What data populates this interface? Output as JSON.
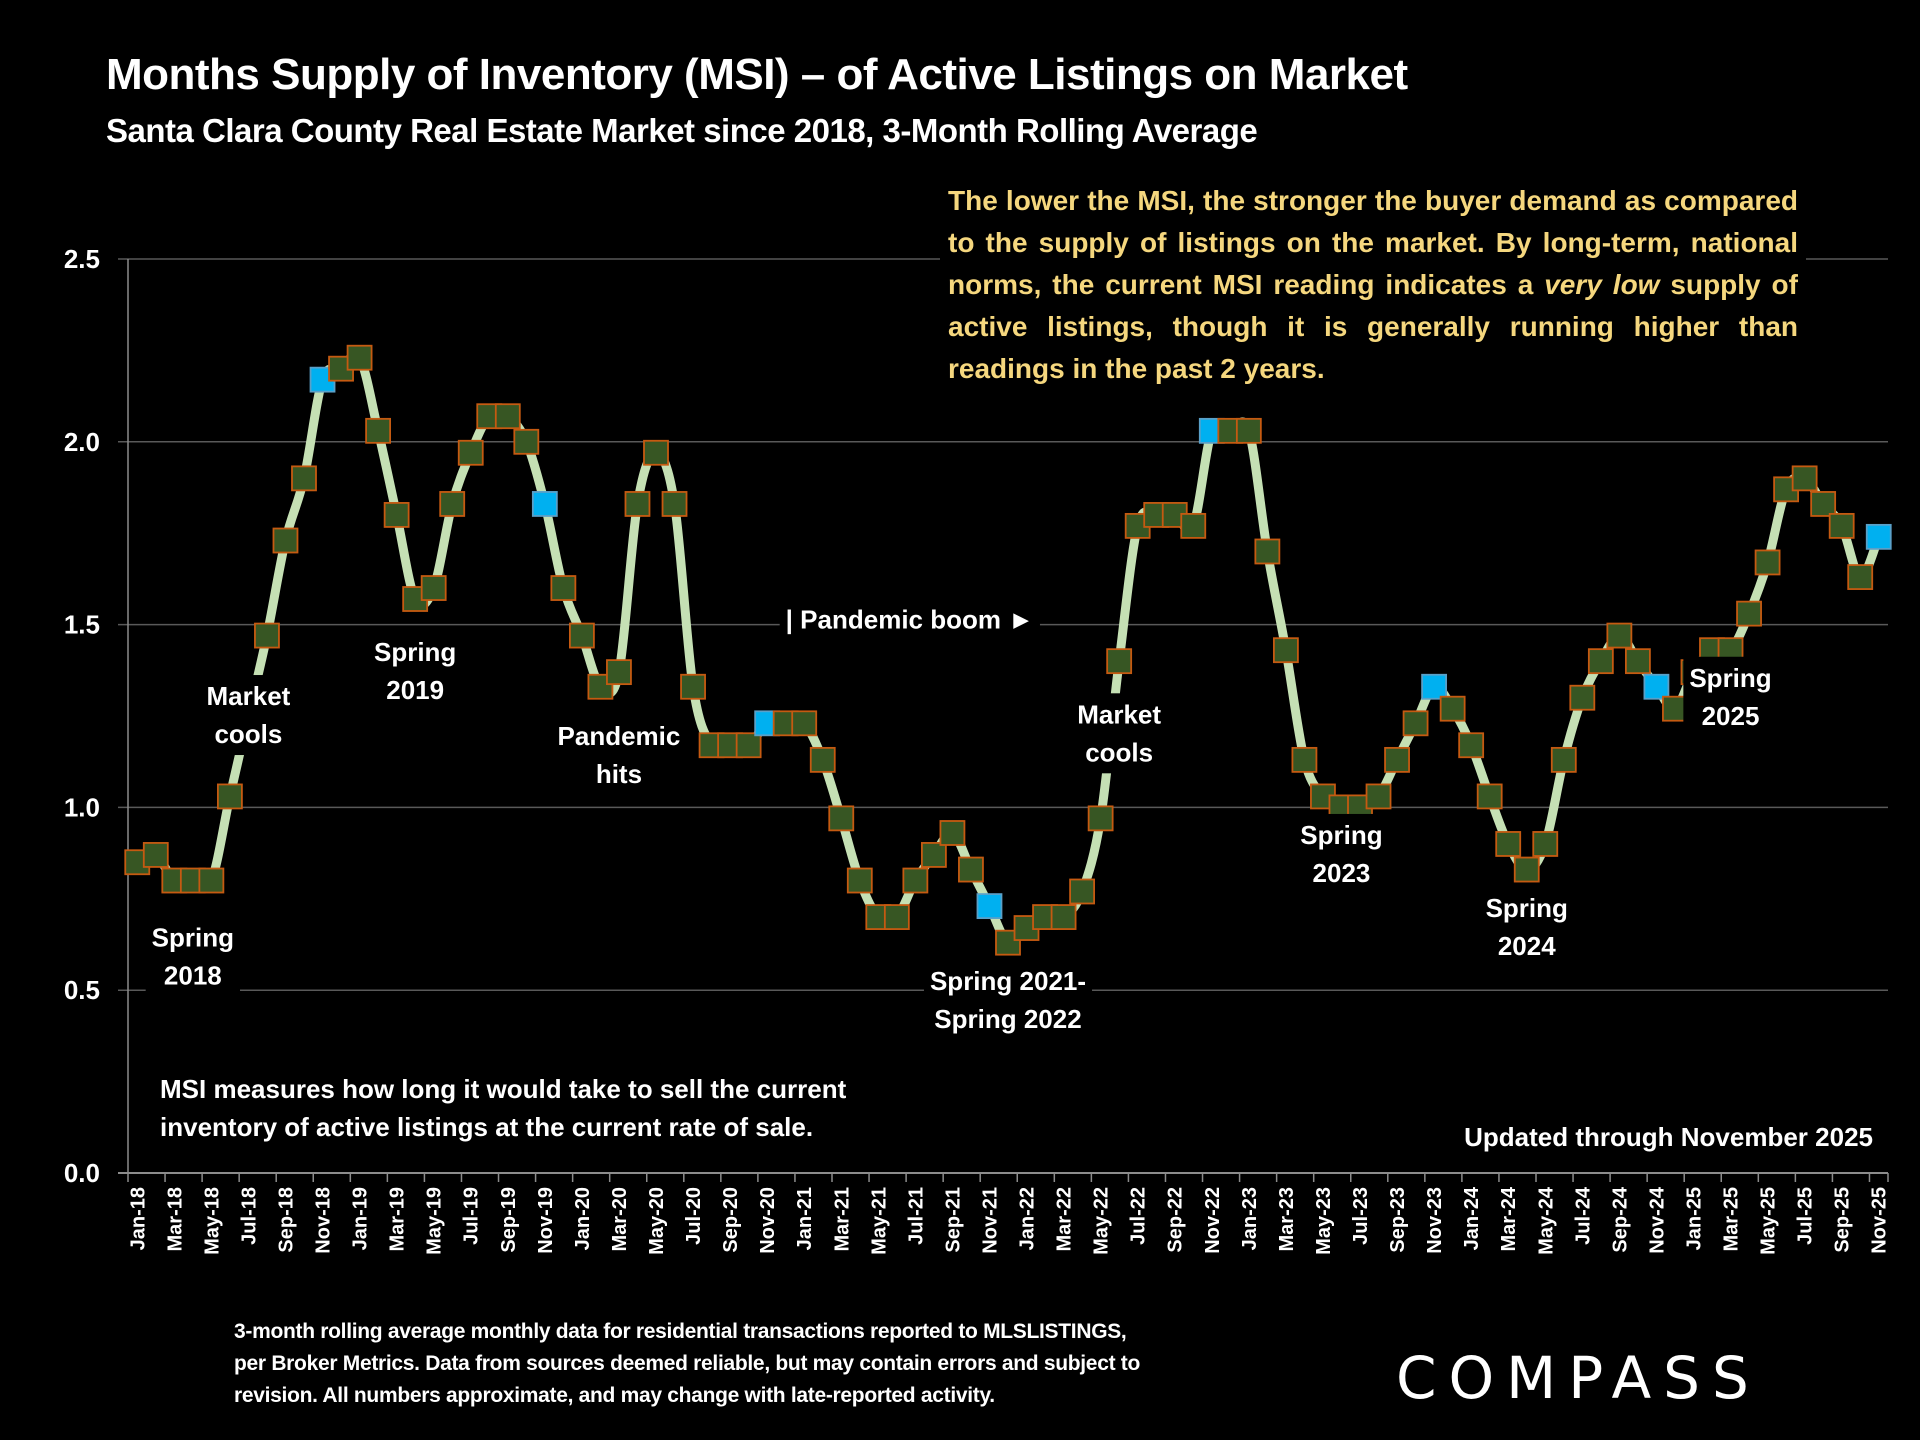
{
  "header": {
    "title": "Months Supply of Inventory (MSI) – of Active Listings on Market",
    "subtitle": "Santa Clara County Real Estate Market since 2018, 3-Month Rolling Average"
  },
  "note": {
    "part1": "The lower the MSI, the stronger the buyer demand as compared to the supply of listings on the market. By long-term, national norms, the current MSI reading indicates a ",
    "emphasis": "very low",
    "part2": " supply of active listings, though it is generally running higher than readings in the past 2 years."
  },
  "definition": {
    "line1": "MSI measures how long it would take to sell the current",
    "line2": "inventory of active listings at the current rate of sale."
  },
  "updated": "Updated through November 2025",
  "footnote": {
    "line1": "3-month rolling average monthly data for residential transactions reported to MLSLISTINGS,",
    "line2": "per Broker Metrics. Data from sources deemed reliable, but may contain errors and subject to",
    "line3": "revision. All numbers approximate, and may change with late-reported activity."
  },
  "logo": "COMPASS",
  "colors": {
    "background": "#000000",
    "line": "#c5e0b4",
    "marker_fill": "#375623",
    "marker_border": "#c55a11",
    "highlight_fill": "#00b0f0",
    "note_text": "#f5d77e",
    "grid": "#595959"
  },
  "chart_data": {
    "type": "line",
    "title": "Months Supply of Inventory (MSI) – of Active Listings on Market",
    "xlabel": "",
    "ylabel": "",
    "ylim": [
      0,
      2.5
    ],
    "yticks": [
      "0.0",
      "0.5",
      "1.0",
      "1.5",
      "2.0",
      "2.5"
    ],
    "grid": true,
    "legend": "none",
    "x": [
      "Jan-18",
      "Feb-18",
      "Mar-18",
      "Apr-18",
      "May-18",
      "Jun-18",
      "Jul-18",
      "Aug-18",
      "Sep-18",
      "Oct-18",
      "Nov-18",
      "Dec-18",
      "Jan-19",
      "Feb-19",
      "Mar-19",
      "Apr-19",
      "May-19",
      "Jun-19",
      "Jul-19",
      "Aug-19",
      "Sep-19",
      "Oct-19",
      "Nov-19",
      "Dec-19",
      "Jan-20",
      "Feb-20",
      "Mar-20",
      "Apr-20",
      "May-20",
      "Jun-20",
      "Jul-20",
      "Aug-20",
      "Sep-20",
      "Oct-20",
      "Nov-20",
      "Dec-20",
      "Jan-21",
      "Feb-21",
      "Mar-21",
      "Apr-21",
      "May-21",
      "Jun-21",
      "Jul-21",
      "Aug-21",
      "Sep-21",
      "Oct-21",
      "Nov-21",
      "Dec-21",
      "Jan-22",
      "Feb-22",
      "Mar-22",
      "Apr-22",
      "May-22",
      "Jun-22",
      "Jul-22",
      "Aug-22",
      "Sep-22",
      "Oct-22",
      "Nov-22",
      "Dec-22",
      "Jan-23",
      "Feb-23",
      "Mar-23",
      "Apr-23",
      "May-23",
      "Jun-23",
      "Jul-23",
      "Aug-23",
      "Sep-23",
      "Oct-23",
      "Nov-23",
      "Dec-23",
      "Jan-24",
      "Feb-24",
      "Mar-24",
      "Apr-24",
      "May-24",
      "Jun-24",
      "Jul-24",
      "Aug-24",
      "Sep-24",
      "Oct-24",
      "Nov-24",
      "Dec-24",
      "Jan-25",
      "Feb-25",
      "Mar-25",
      "Apr-25",
      "May-25",
      "Jun-25",
      "Jul-25",
      "Aug-25",
      "Sep-25",
      "Oct-25",
      "Nov-25"
    ],
    "tick_labels": [
      "Jan-18",
      "Mar-18",
      "May-18",
      "Jul-18",
      "Sep-18",
      "Nov-18",
      "Jan-19",
      "Mar-19",
      "May-19",
      "Jul-19",
      "Sep-19",
      "Nov-19",
      "Jan-20",
      "Mar-20",
      "May-20",
      "Jul-20",
      "Sep-20",
      "Nov-20",
      "Jan-21",
      "Mar-21",
      "May-21",
      "Jul-21",
      "Sep-21",
      "Nov-21",
      "Jan-22",
      "Mar-22",
      "May-22",
      "Jul-22",
      "Sep-22",
      "Nov-22",
      "Jan-23",
      "Mar-23",
      "May-23",
      "Jul-23",
      "Sep-23",
      "Nov-23",
      "Jan-24",
      "Mar-24",
      "May-24",
      "Jul-24",
      "Sep-24",
      "Nov-24",
      "Jan-25",
      "Mar-25",
      "May-25",
      "Jul-25",
      "Sep-25",
      "Nov-25"
    ],
    "series": [
      {
        "name": "MSI",
        "values": [
          0.85,
          0.87,
          0.8,
          0.8,
          0.8,
          1.03,
          1.25,
          1.47,
          1.73,
          1.9,
          2.17,
          2.2,
          2.23,
          2.03,
          1.8,
          1.57,
          1.6,
          1.83,
          1.97,
          2.07,
          2.07,
          2.0,
          1.83,
          1.6,
          1.47,
          1.33,
          1.37,
          1.83,
          1.97,
          1.83,
          1.33,
          1.17,
          1.17,
          1.17,
          1.23,
          1.23,
          1.23,
          1.13,
          0.97,
          0.8,
          0.7,
          0.7,
          0.8,
          0.87,
          0.93,
          0.83,
          0.73,
          0.63,
          0.67,
          0.7,
          0.7,
          0.77,
          0.97,
          1.4,
          1.77,
          1.8,
          1.8,
          1.77,
          2.03,
          2.03,
          2.03,
          1.7,
          1.43,
          1.13,
          1.03,
          1.0,
          1.0,
          1.03,
          1.13,
          1.23,
          1.33,
          1.27,
          1.17,
          1.03,
          0.9,
          0.83,
          0.9,
          1.13,
          1.3,
          1.4,
          1.47,
          1.4,
          1.33,
          1.27,
          1.37,
          1.43,
          1.43,
          1.53,
          1.67,
          1.87,
          1.9,
          1.83,
          1.77,
          1.63,
          1.74
        ],
        "hidden_markers": [
          "Jul-18"
        ],
        "highlighted": [
          "Nov-18",
          "Nov-19",
          "Nov-20",
          "Nov-21",
          "Nov-22",
          "Nov-23",
          "Nov-24",
          "Nov-25"
        ]
      }
    ],
    "annotations": [
      {
        "lines": [
          "Spring",
          "2018"
        ],
        "x": "Apr-18",
        "y": 0.62
      },
      {
        "lines": [
          "Market",
          "cools"
        ],
        "x": "Jul-18",
        "y": 1.28
      },
      {
        "lines": [
          "Spring",
          "2019"
        ],
        "x": "Apr-19",
        "y": 1.4
      },
      {
        "lines": [
          "Pandemic",
          "hits"
        ],
        "x": "Mar-20",
        "y": 1.17
      },
      {
        "lines": [
          "| Pandemic boom ►"
        ],
        "x": "Dec-20",
        "y": 1.49
      },
      {
        "lines": [
          "Spring 2021-",
          "Spring 2022"
        ],
        "x": "Dec-21",
        "y": 0.5
      },
      {
        "lines": [
          "Market",
          "cools"
        ],
        "x": "Jun-22",
        "y": 1.23
      },
      {
        "lines": [
          "Spring",
          "2023"
        ],
        "x": "Jun-23",
        "y": 0.9
      },
      {
        "lines": [
          "Spring",
          "2024"
        ],
        "x": "Apr-24",
        "y": 0.7
      },
      {
        "lines": [
          "Spring",
          "2025"
        ],
        "x": "Mar-25",
        "y": 1.33
      }
    ]
  }
}
